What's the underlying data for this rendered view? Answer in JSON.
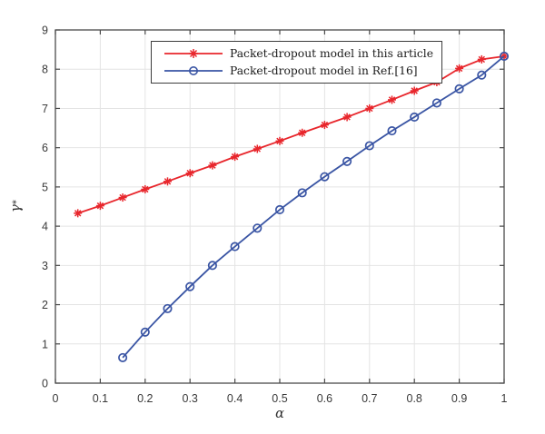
{
  "figure": {
    "background": "#ffffff"
  },
  "chart_data": {
    "type": "line",
    "title": "",
    "xlabel": "α",
    "ylabel_base": "γ",
    "ylabel_sup": "*",
    "xlim": [
      0,
      1
    ],
    "ylim": [
      0,
      9
    ],
    "x_ticks": [
      0,
      0.1,
      0.2,
      0.3,
      0.4,
      0.5,
      0.6,
      0.7,
      0.8,
      0.9,
      1
    ],
    "x_tick_labels": [
      "0",
      "0.1",
      "0.2",
      "0.3",
      "0.4",
      "0.5",
      "0.6",
      "0.7",
      "0.8",
      "0.9",
      "1"
    ],
    "y_ticks": [
      0,
      1,
      2,
      3,
      4,
      5,
      6,
      7,
      8,
      9
    ],
    "y_tick_labels": [
      "0",
      "1",
      "2",
      "3",
      "4",
      "5",
      "6",
      "7",
      "8",
      "9"
    ],
    "grid": true,
    "legend_position": "north-inside",
    "series": [
      {
        "name": "Packet-dropout model in this article",
        "color": "#e8262c",
        "marker": "asterisk",
        "x": [
          0.05,
          0.1,
          0.15,
          0.2,
          0.25,
          0.3,
          0.35,
          0.4,
          0.45,
          0.5,
          0.55,
          0.6,
          0.65,
          0.7,
          0.75,
          0.8,
          0.85,
          0.9,
          0.95,
          1.0
        ],
        "y": [
          4.33,
          4.52,
          4.73,
          4.94,
          5.14,
          5.35,
          5.55,
          5.77,
          5.97,
          6.17,
          6.38,
          6.58,
          6.78,
          7.0,
          7.22,
          7.45,
          7.67,
          8.02,
          8.25,
          8.33
        ]
      },
      {
        "name": "Packet-dropout model in Ref.[16]",
        "color": "#3a55a4",
        "marker": "circle",
        "x": [
          0.15,
          0.2,
          0.25,
          0.3,
          0.35,
          0.4,
          0.45,
          0.5,
          0.55,
          0.6,
          0.65,
          0.7,
          0.75,
          0.8,
          0.85,
          0.9,
          0.95,
          1.0
        ],
        "y": [
          0.65,
          1.3,
          1.9,
          2.46,
          3.0,
          3.48,
          3.95,
          4.42,
          4.85,
          5.26,
          5.65,
          6.05,
          6.43,
          6.78,
          7.14,
          7.5,
          7.85,
          8.33
        ]
      }
    ],
    "colors": {
      "grid": "#e4e4e4",
      "axis": "#4a4a4a",
      "tick_text": "#3a3a3a",
      "background": "#ffffff",
      "legend_border": "#3c3c3c"
    }
  }
}
